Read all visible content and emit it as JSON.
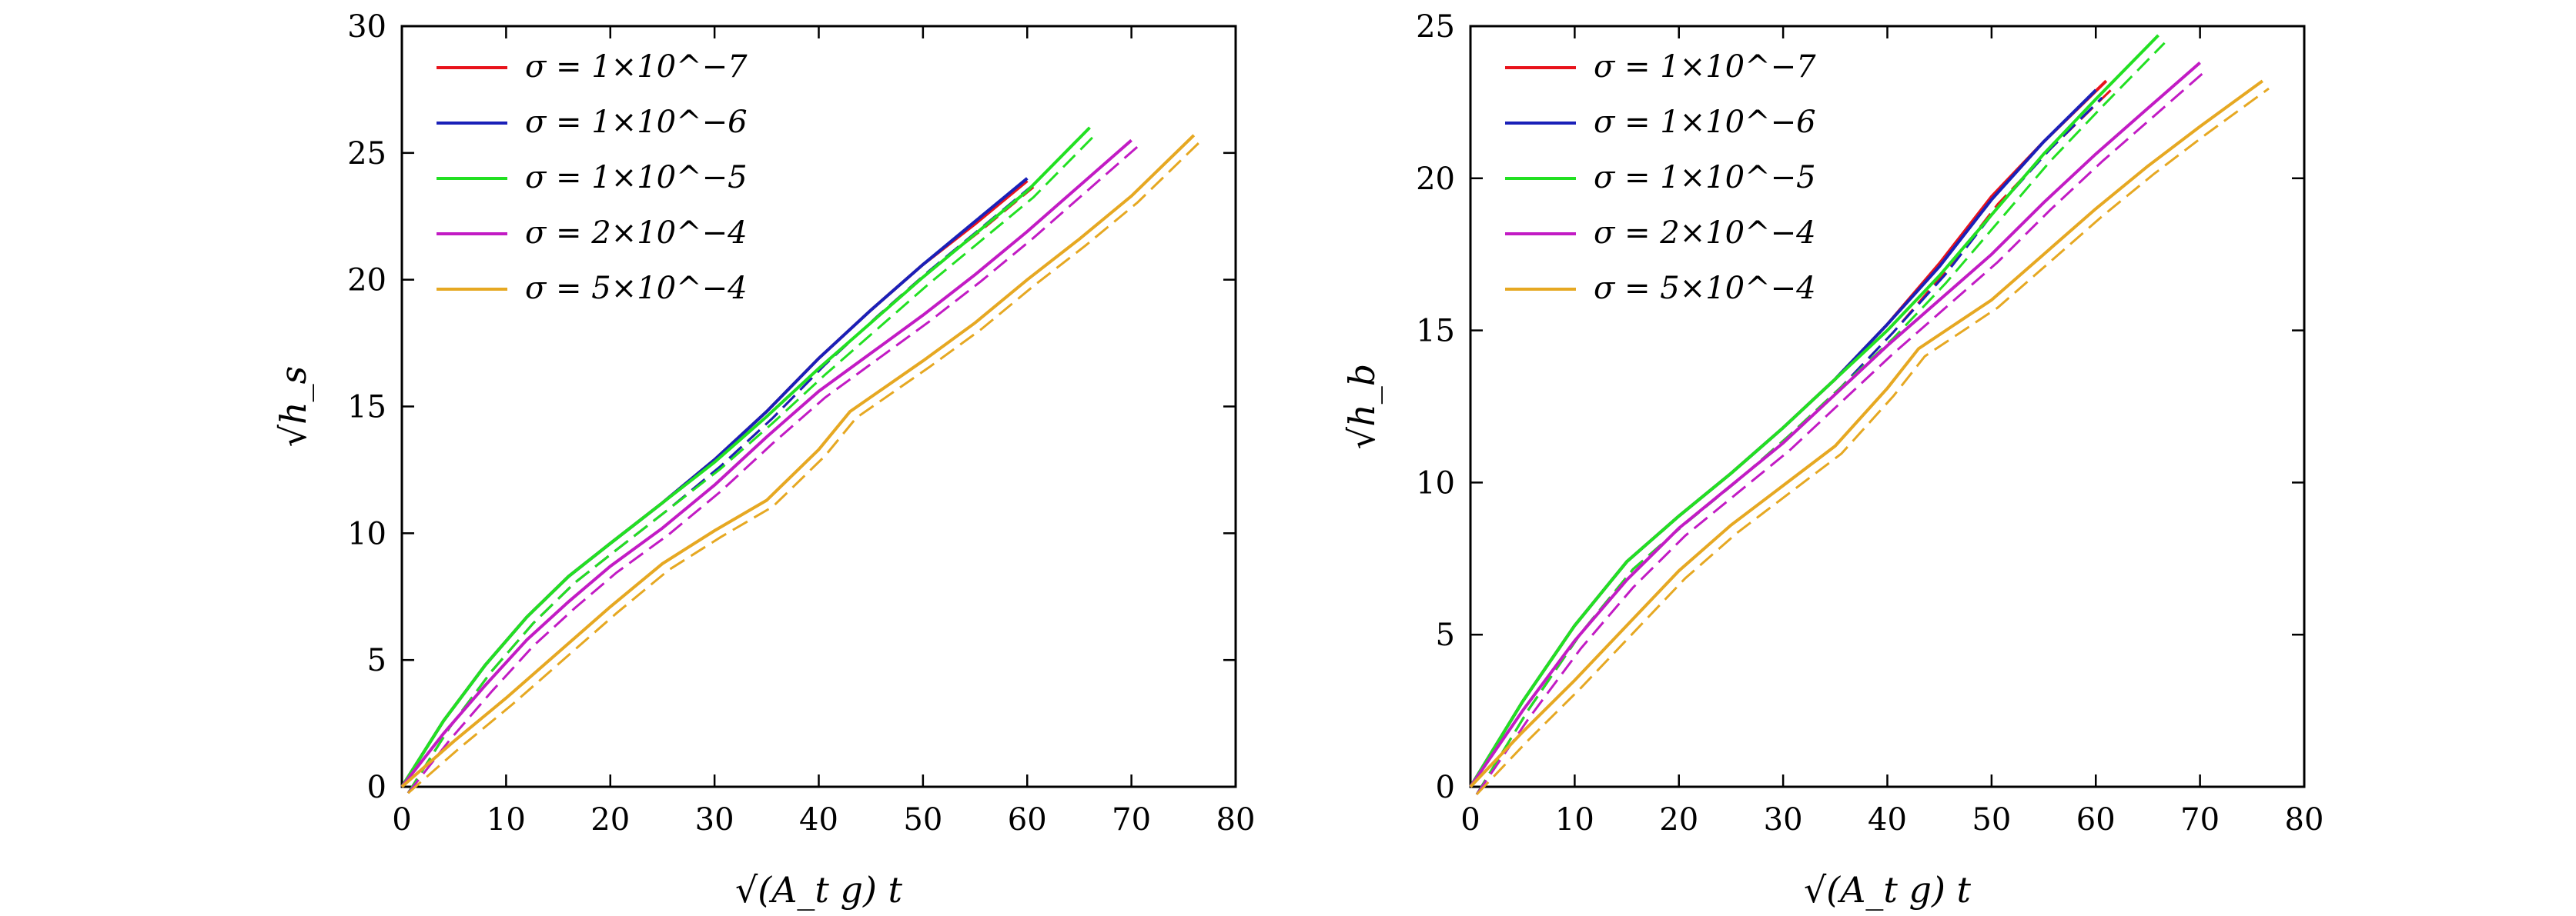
{
  "chart_data": [
    {
      "type": "line",
      "title": "",
      "xlabel": "√(A_t g) t",
      "ylabel": "√h_s",
      "xlim": [
        0,
        80
      ],
      "ylim": [
        0,
        30
      ],
      "xticks": [
        0,
        10,
        20,
        30,
        40,
        50,
        60,
        70,
        80
      ],
      "yticks": [
        0,
        5,
        10,
        15,
        20,
        25,
        30
      ],
      "grid": false,
      "legend_position": "top-left",
      "line_style": "solid with overlaid dashed curves",
      "series": [
        {
          "name": "σ = 1×10^−7",
          "color": "#e8131b",
          "x": [
            0,
            4,
            8,
            12,
            16,
            20,
            25,
            30,
            35,
            40,
            45,
            50,
            55,
            60
          ],
          "y": [
            0,
            2.6,
            4.8,
            6.7,
            8.3,
            9.6,
            11.2,
            12.9,
            14.8,
            16.9,
            18.8,
            20.6,
            22.2,
            23.9
          ]
        },
        {
          "name": "σ = 1×10^−6",
          "color": "#1a20b8",
          "x": [
            0,
            4,
            8,
            12,
            16,
            20,
            25,
            30,
            35,
            40,
            45,
            50,
            55,
            60
          ],
          "y": [
            0,
            2.6,
            4.8,
            6.7,
            8.3,
            9.6,
            11.2,
            12.9,
            14.8,
            16.9,
            18.8,
            20.6,
            22.3,
            24.0
          ]
        },
        {
          "name": "σ = 1×10^−5",
          "color": "#22e022",
          "x": [
            0,
            4,
            8,
            12,
            16,
            20,
            25,
            30,
            35,
            40,
            45,
            50,
            55,
            60,
            66
          ],
          "y": [
            0,
            2.6,
            4.8,
            6.7,
            8.3,
            9.6,
            11.2,
            12.8,
            14.6,
            16.5,
            18.3,
            20.1,
            21.8,
            23.5,
            26.0
          ]
        },
        {
          "name": "σ = 2×10^−4",
          "color": "#c21bc4",
          "x": [
            0,
            4,
            8,
            12,
            16,
            20,
            25,
            30,
            35,
            40,
            45,
            50,
            55,
            60,
            65,
            70
          ],
          "y": [
            0,
            2.1,
            4.0,
            5.8,
            7.3,
            8.7,
            10.2,
            11.9,
            13.8,
            15.6,
            17.1,
            18.6,
            20.2,
            21.9,
            23.7,
            25.5
          ]
        },
        {
          "name": "σ = 5×10^−4",
          "color": "#e6a822",
          "x": [
            0,
            5,
            10,
            15,
            20,
            25,
            30,
            35,
            40,
            43,
            50,
            55,
            60,
            65,
            70,
            76
          ],
          "y": [
            0,
            1.8,
            3.5,
            5.3,
            7.1,
            8.8,
            10.1,
            11.3,
            13.3,
            14.8,
            16.8,
            18.3,
            20.0,
            21.6,
            23.3,
            25.7
          ]
        }
      ]
    },
    {
      "type": "line",
      "title": "",
      "xlabel": "√(A_t g) t",
      "ylabel": "√h_b",
      "xlim": [
        0,
        80
      ],
      "ylim": [
        0,
        25
      ],
      "xticks": [
        0,
        10,
        20,
        30,
        40,
        50,
        60,
        70,
        80
      ],
      "yticks": [
        0,
        5,
        10,
        15,
        20,
        25
      ],
      "grid": false,
      "legend_position": "top-left",
      "line_style": "solid with overlaid dashed curves",
      "series": [
        {
          "name": "σ = 1×10^−7",
          "color": "#e8131b",
          "x": [
            0,
            5,
            10,
            15,
            20,
            25,
            30,
            35,
            40,
            45,
            50,
            55,
            61
          ],
          "y": [
            0,
            2.8,
            5.3,
            7.4,
            8.9,
            10.3,
            11.8,
            13.4,
            15.2,
            17.2,
            19.4,
            21.2,
            23.2
          ]
        },
        {
          "name": "σ = 1×10^−6",
          "color": "#1a20b8",
          "x": [
            0,
            5,
            10,
            15,
            20,
            25,
            30,
            35,
            40,
            45,
            50,
            55,
            60
          ],
          "y": [
            0,
            2.8,
            5.3,
            7.4,
            8.9,
            10.3,
            11.8,
            13.4,
            15.2,
            17.1,
            19.3,
            21.2,
            22.9
          ]
        },
        {
          "name": "σ = 1×10^−5",
          "color": "#22e022",
          "x": [
            0,
            5,
            10,
            15,
            20,
            25,
            30,
            35,
            40,
            45,
            50,
            55,
            60,
            66
          ],
          "y": [
            0,
            2.8,
            5.3,
            7.4,
            8.9,
            10.3,
            11.8,
            13.4,
            15.0,
            16.8,
            18.8,
            20.8,
            22.6,
            24.7
          ]
        },
        {
          "name": "σ = 2×10^−4",
          "color": "#c21bc4",
          "x": [
            0,
            5,
            10,
            15,
            20,
            25,
            30,
            35,
            40,
            45,
            50,
            55,
            60,
            65,
            70
          ],
          "y": [
            0,
            2.5,
            4.8,
            6.8,
            8.5,
            9.9,
            11.3,
            12.9,
            14.5,
            16.0,
            17.5,
            19.2,
            20.8,
            22.3,
            23.8
          ]
        },
        {
          "name": "σ = 5×10^−4",
          "color": "#e6a822",
          "x": [
            0,
            5,
            10,
            15,
            20,
            25,
            30,
            35,
            40,
            43,
            50,
            55,
            60,
            65,
            70,
            76
          ],
          "y": [
            0,
            1.8,
            3.5,
            5.3,
            7.1,
            8.6,
            9.9,
            11.2,
            13.1,
            14.4,
            16.0,
            17.5,
            19.0,
            20.4,
            21.7,
            23.2
          ]
        }
      ]
    }
  ]
}
